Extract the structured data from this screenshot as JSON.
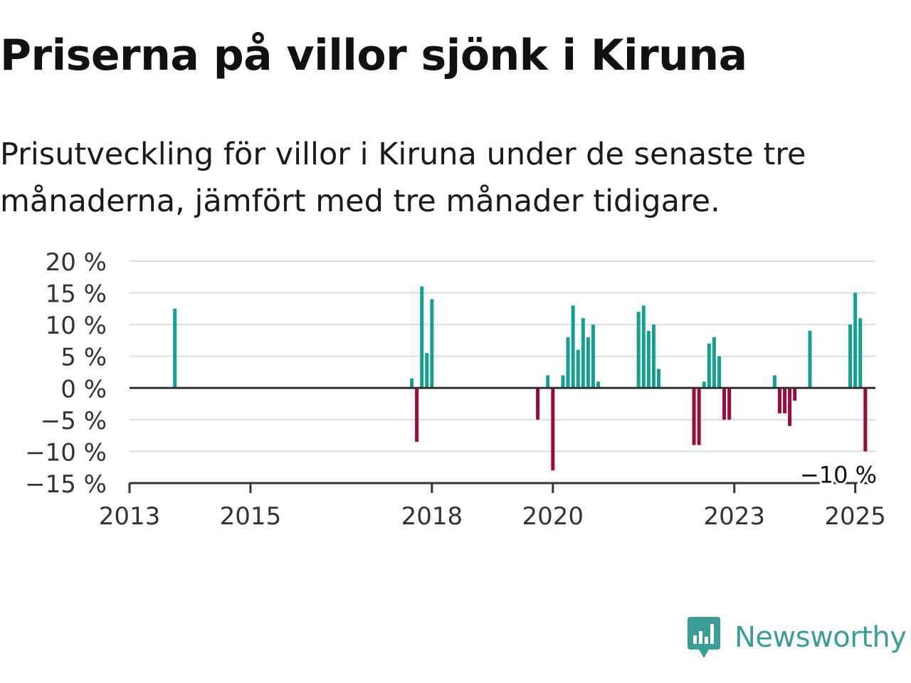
{
  "header": {
    "title": "Priserna på villor sjönk i Kiruna",
    "subtitle": "Prisutveckling för villor i Kiruna under de senaste tre månaderna, jämfört med tre månader tidigare."
  },
  "brand": {
    "name": "Newsworthy",
    "icon": "newsworthy-logo-icon",
    "color": "#3a9e96"
  },
  "colors": {
    "positive": "#13a091",
    "negative": "#9c0a3f",
    "gridline": "#dddddd",
    "zero_line": "#333333",
    "axis_text": "#333333"
  },
  "chart_data": {
    "type": "bar",
    "title": "",
    "xlabel": "",
    "ylabel": "",
    "ylim": [
      -15,
      20
    ],
    "xlim": [
      "2013-01",
      "2025-05"
    ],
    "y_ticks": [
      20,
      15,
      10,
      5,
      0,
      -5,
      -10,
      -15
    ],
    "y_tick_labels": [
      "20 %",
      "15 %",
      "10 %",
      "5 %",
      "0 %",
      "−5 %",
      "−10 %",
      "−15 %"
    ],
    "x_ticks": [
      "2013-01",
      "2015-01",
      "2018-01",
      "2020-01",
      "2023-01",
      "2025-01"
    ],
    "x_tick_labels": [
      "2013",
      "2015",
      "2018",
      "2020",
      "2023",
      "2025"
    ],
    "grid": true,
    "legend": "none",
    "series": [
      {
        "values": [
          [
            "2013-10",
            12.5
          ],
          [
            "2017-09",
            1.5
          ],
          [
            "2017-10",
            -8.5
          ],
          [
            "2017-11",
            16
          ],
          [
            "2017-12",
            5.5
          ],
          [
            "2018-01",
            14
          ],
          [
            "2019-10",
            -5
          ],
          [
            "2019-12",
            2
          ],
          [
            "2020-01",
            -13
          ],
          [
            "2020-03",
            2
          ],
          [
            "2020-04",
            8
          ],
          [
            "2020-05",
            13
          ],
          [
            "2020-06",
            6
          ],
          [
            "2020-07",
            11
          ],
          [
            "2020-08",
            8
          ],
          [
            "2020-09",
            10
          ],
          [
            "2020-10",
            1
          ],
          [
            "2021-06",
            12
          ],
          [
            "2021-07",
            13
          ],
          [
            "2021-08",
            9
          ],
          [
            "2021-09",
            10
          ],
          [
            "2021-10",
            3
          ],
          [
            "2022-05",
            -9
          ],
          [
            "2022-06",
            -9
          ],
          [
            "2022-07",
            1
          ],
          [
            "2022-08",
            7
          ],
          [
            "2022-09",
            8
          ],
          [
            "2022-10",
            5
          ],
          [
            "2022-11",
            -5
          ],
          [
            "2022-12",
            -5
          ],
          [
            "2023-09",
            2
          ],
          [
            "2023-10",
            -4
          ],
          [
            "2023-11",
            -4
          ],
          [
            "2023-12",
            -6
          ],
          [
            "2024-01",
            -2
          ],
          [
            "2024-04",
            9
          ],
          [
            "2024-12",
            10
          ],
          [
            "2025-01",
            15
          ],
          [
            "2025-02",
            11
          ],
          [
            "2025-03",
            -10
          ]
        ]
      }
    ],
    "annotations": [
      {
        "x": "2025-03",
        "y": -10,
        "label": "−10 %"
      }
    ]
  }
}
